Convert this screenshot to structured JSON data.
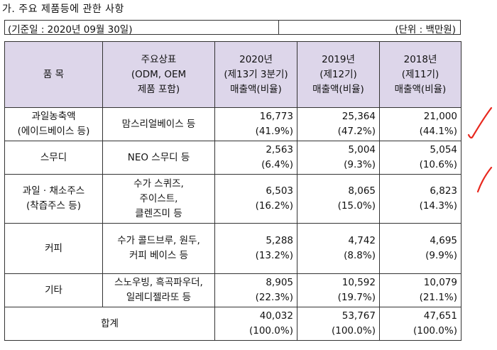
{
  "section_title": "가. 주요 제품등에 관한 사항",
  "info": {
    "base_date": "(기준일 : 2020년 09월 30일)",
    "unit": "(단위 : 백만원)"
  },
  "table": {
    "headers": {
      "item": "품 목",
      "brand": [
        "주요상표",
        "(ODM, OEM",
        "제품 포함)"
      ],
      "y2020": [
        "2020년",
        "(제13기 3분기)",
        "매출액(비율)"
      ],
      "y2019": [
        "2019년",
        "(제12기)",
        "매출액(비율)"
      ],
      "y2018": [
        "2018년",
        "(제11기)",
        "매출액(비율)"
      ]
    },
    "rows": [
      {
        "category": [
          "과일농축액",
          "(에이드베이스 등)"
        ],
        "brand": [
          "맘스리얼베이스 등"
        ],
        "y2020": [
          "16,773",
          "(41.9%)"
        ],
        "y2019": [
          "25,364",
          "(47.2%)"
        ],
        "y2018": [
          "21,000",
          "(44.1%)"
        ]
      },
      {
        "category": [
          "스무디"
        ],
        "brand": [
          "NEO 스무디 등"
        ],
        "y2020": [
          "2,563",
          "(6.4%)"
        ],
        "y2019": [
          "5,004",
          "(9.3%)"
        ],
        "y2018": [
          "5,054",
          "(10.6%)"
        ]
      },
      {
        "category": [
          "과일 · 채소주스",
          "(착즙주스 등)"
        ],
        "brand": [
          "수가 스퀴즈,",
          "주이스트,",
          "클렌즈미 등"
        ],
        "y2020": [
          "6,503",
          "(16.2%)"
        ],
        "y2019": [
          "8,065",
          "(15.0%)"
        ],
        "y2018": [
          "6,823",
          "(14.3%)"
        ]
      },
      {
        "category": [
          "커피"
        ],
        "brand": [
          "수가 콜드브루, 원두,",
          "커피 베이스 등"
        ],
        "y2020": [
          "5,288",
          "(13.2%)"
        ],
        "y2019": [
          "4,742",
          "(8.8%)"
        ],
        "y2018": [
          "4,695",
          "(9.9%)"
        ]
      },
      {
        "category": [
          "기타"
        ],
        "brand": [
          "스노우빙, 흑곡파우더,",
          "일레디젤라또 등"
        ],
        "y2020": [
          "8,905",
          "(22.3%)"
        ],
        "y2019": [
          "10,592",
          "(19.7%)"
        ],
        "y2018": [
          "10,079",
          "(21.1%)"
        ]
      }
    ],
    "total": {
      "label": "합계",
      "y2020": [
        "40,032",
        "(100.0%)"
      ],
      "y2019": [
        "53,767",
        "(100.0%)"
      ],
      "y2018": [
        "47,651",
        "(100.0%)"
      ]
    }
  },
  "annotation_color": "#e8281e"
}
